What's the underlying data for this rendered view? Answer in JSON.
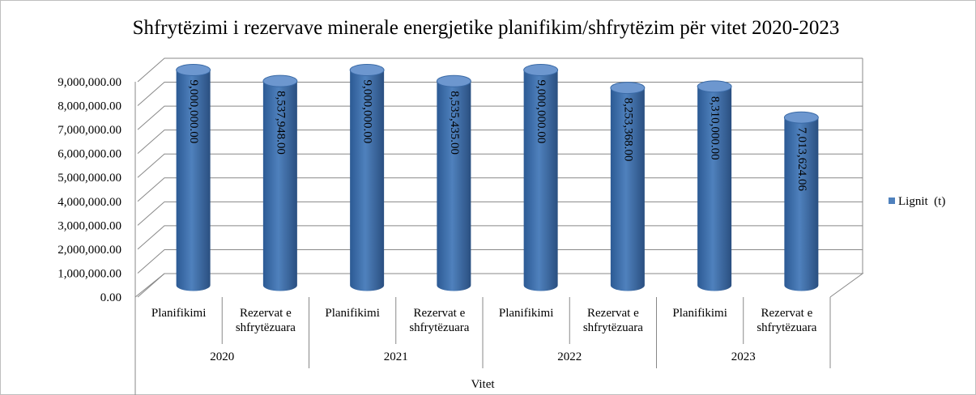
{
  "chart_data": {
    "type": "bar3d",
    "title": "Shfrytëzimi i rezervave minerale energjetike planifikim/shfrytëzim për vitet 2020-2023",
    "categories": [
      "Planifikimi",
      "Rezervat e shfrytëzuara",
      "Planifikimi",
      "Rezervat e shfrytëzuara",
      "Planifikimi",
      "Rezervat e shfrytëzuara",
      "Planifikimi",
      "Rezervat e shfrytëzuara"
    ],
    "groups": [
      "2020",
      "2021",
      "2022",
      "2023"
    ],
    "xlabel": "Vitet",
    "series": [
      {
        "name": "Lignit  (t)",
        "color": "#4f81bd",
        "values": [
          9000000,
          8537948,
          9000000,
          8535435,
          9000000,
          8253368,
          8310000,
          7013624.06
        ],
        "value_labels": [
          "9,000,000.00",
          "8,537,948.00",
          "9,000,000.00",
          "8,535,435.00",
          "9,000,000.00",
          "8,253,368.00",
          "8,310,000.00",
          "7,013,624.06"
        ]
      }
    ],
    "ylim": [
      0,
      9000000
    ],
    "yticks": [
      {
        "value": 0,
        "label": "0.00"
      },
      {
        "value": 1000000,
        "label": "1,000,000.00"
      },
      {
        "value": 2000000,
        "label": "2,000,000.00"
      },
      {
        "value": 3000000,
        "label": "3,000,000.00"
      },
      {
        "value": 4000000,
        "label": "4,000,000.00"
      },
      {
        "value": 5000000,
        "label": "5,000,000.00"
      },
      {
        "value": 6000000,
        "label": "6,000,000.00"
      },
      {
        "value": 7000000,
        "label": "7,000,000.00"
      },
      {
        "value": 8000000,
        "label": "8,000,000.00"
      },
      {
        "value": 9000000,
        "label": "9,000,000.00"
      }
    ],
    "grid": true,
    "legend": "right"
  }
}
